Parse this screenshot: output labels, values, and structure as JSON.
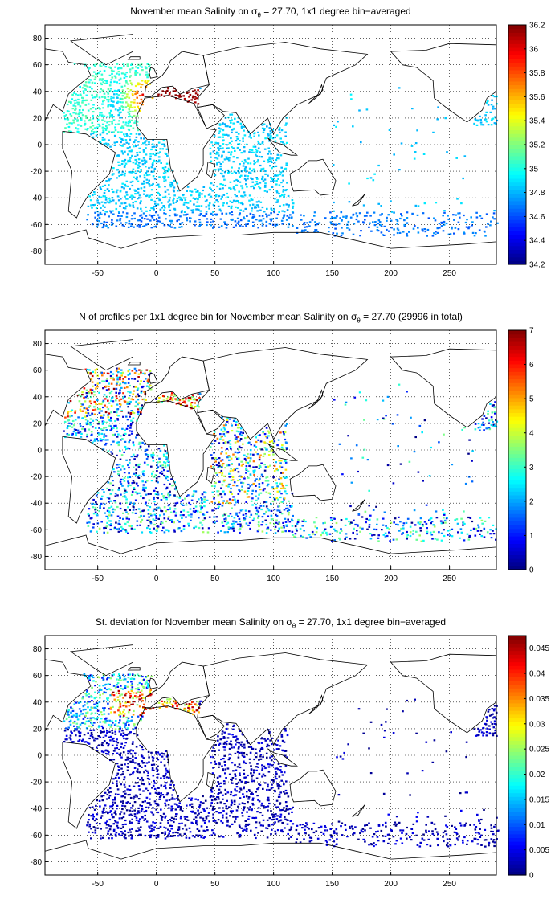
{
  "panels": [
    {
      "id": "salinity",
      "title_pre": "November mean Salinity on ",
      "title_sigma": "σ",
      "title_sub": "θ",
      "title_post": " = 27.70, 1x1 degree bin−averaged",
      "colorbar_ticks": [
        "34.2",
        "34.4",
        "34.6",
        "34.8",
        "35",
        "35.2",
        "35.4",
        "35.6",
        "35.8",
        "36",
        "36.2"
      ],
      "colorbar_range": [
        34.2,
        36.2
      ]
    },
    {
      "id": "profiles",
      "title_pre": "N of profiles per 1x1 degree bin for November mean Salinity on ",
      "title_sigma": "σ",
      "title_sub": "θ",
      "title_post": " = 27.70 (29996 in total)",
      "colorbar_ticks": [
        "0",
        "1",
        "2",
        "3",
        "4",
        "5",
        "6",
        "7"
      ],
      "colorbar_range": [
        0,
        7
      ]
    },
    {
      "id": "stdev",
      "title_pre": "St. deviation for November mean Salinity on ",
      "title_sigma": "σ",
      "title_sub": "θ",
      "title_post": " = 27.70, 1x1 degree bin−averaged",
      "colorbar_ticks": [
        "0",
        "0.005",
        "0.01",
        "0.015",
        "0.02",
        "0.025",
        "0.03",
        "0.035",
        "0.04",
        "0.045"
      ],
      "colorbar_range": [
        0,
        0.0475
      ]
    }
  ],
  "x_ticks": [
    "-50",
    "0",
    "50",
    "100",
    "150",
    "200",
    "250"
  ],
  "y_ticks": [
    "80",
    "60",
    "40",
    "20",
    "0",
    "-20",
    "-40",
    "-60",
    "-80"
  ],
  "x_range": [
    -95,
    290
  ],
  "y_range": [
    -90,
    90
  ],
  "grid": "dotted",
  "colormap": "jet"
}
